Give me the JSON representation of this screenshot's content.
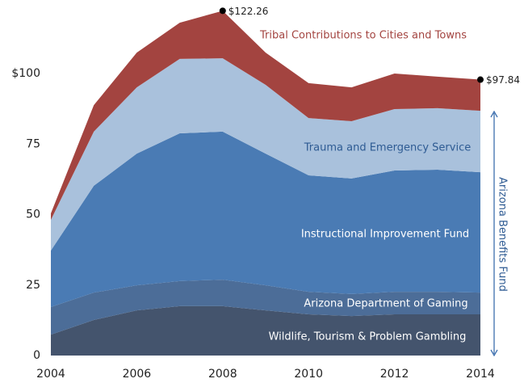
{
  "chart_data": {
    "type": "stacked_area",
    "x": [
      2004,
      2005,
      2006,
      2007,
      2008,
      2009,
      2010,
      2011,
      2012,
      2013,
      2014
    ],
    "series": [
      {
        "name": "Wildlife, Tourism & Problem Gambling",
        "color": "#44546d",
        "label_color": "#ffffff",
        "values": [
          7.4,
          12.6,
          16,
          17.5,
          17.5,
          16,
          14.6,
          14,
          14.6,
          14.6,
          14.6
        ]
      },
      {
        "name": "Arizona Department of Gaming",
        "color": "#4c6d98",
        "label_color": "#ffffff",
        "values": [
          9.8,
          9.7,
          8.9,
          8.9,
          9.4,
          8.9,
          8,
          7.8,
          8,
          8,
          7.7
        ]
      },
      {
        "name": "Instructional Improvement Fund",
        "color": "#4a7bb4",
        "label_color": "#ffffff",
        "values": [
          20,
          37.9,
          46.7,
          52.4,
          52.5,
          46.7,
          41.3,
          41,
          43,
          43.3,
          42.7
        ]
      },
      {
        "name": "Trauma and Emergency Service",
        "color": "#a9c1dc",
        "label_color": "#2e5b93",
        "values": [
          10.9,
          19.2,
          23.5,
          26.4,
          26,
          24.4,
          20.3,
          20.3,
          21.8,
          21.8,
          21.8
        ]
      },
      {
        "name": "Tribal Contributions to Cities and Towns",
        "color": "#a34440",
        "label_color": "#a34440",
        "values": [
          2.3,
          9.4,
          12.3,
          12.8,
          16.86,
          11.4,
          12.4,
          12,
          12.6,
          11.2,
          11.04
        ]
      }
    ],
    "annotations": [
      {
        "x": 2008,
        "value": 122.26,
        "label": "$122.26"
      },
      {
        "x": 2014,
        "value": 97.84,
        "label": "$97.84"
      }
    ],
    "bracket_label": "Arizona Benefits Fund",
    "xlim": [
      2004,
      2014
    ],
    "xticks": [
      2004,
      2006,
      2008,
      2010,
      2012,
      2014
    ],
    "ylim": [
      0,
      125
    ],
    "yticks": [
      0,
      25,
      50,
      75,
      {
        "value": 100,
        "label": "$100"
      }
    ]
  }
}
